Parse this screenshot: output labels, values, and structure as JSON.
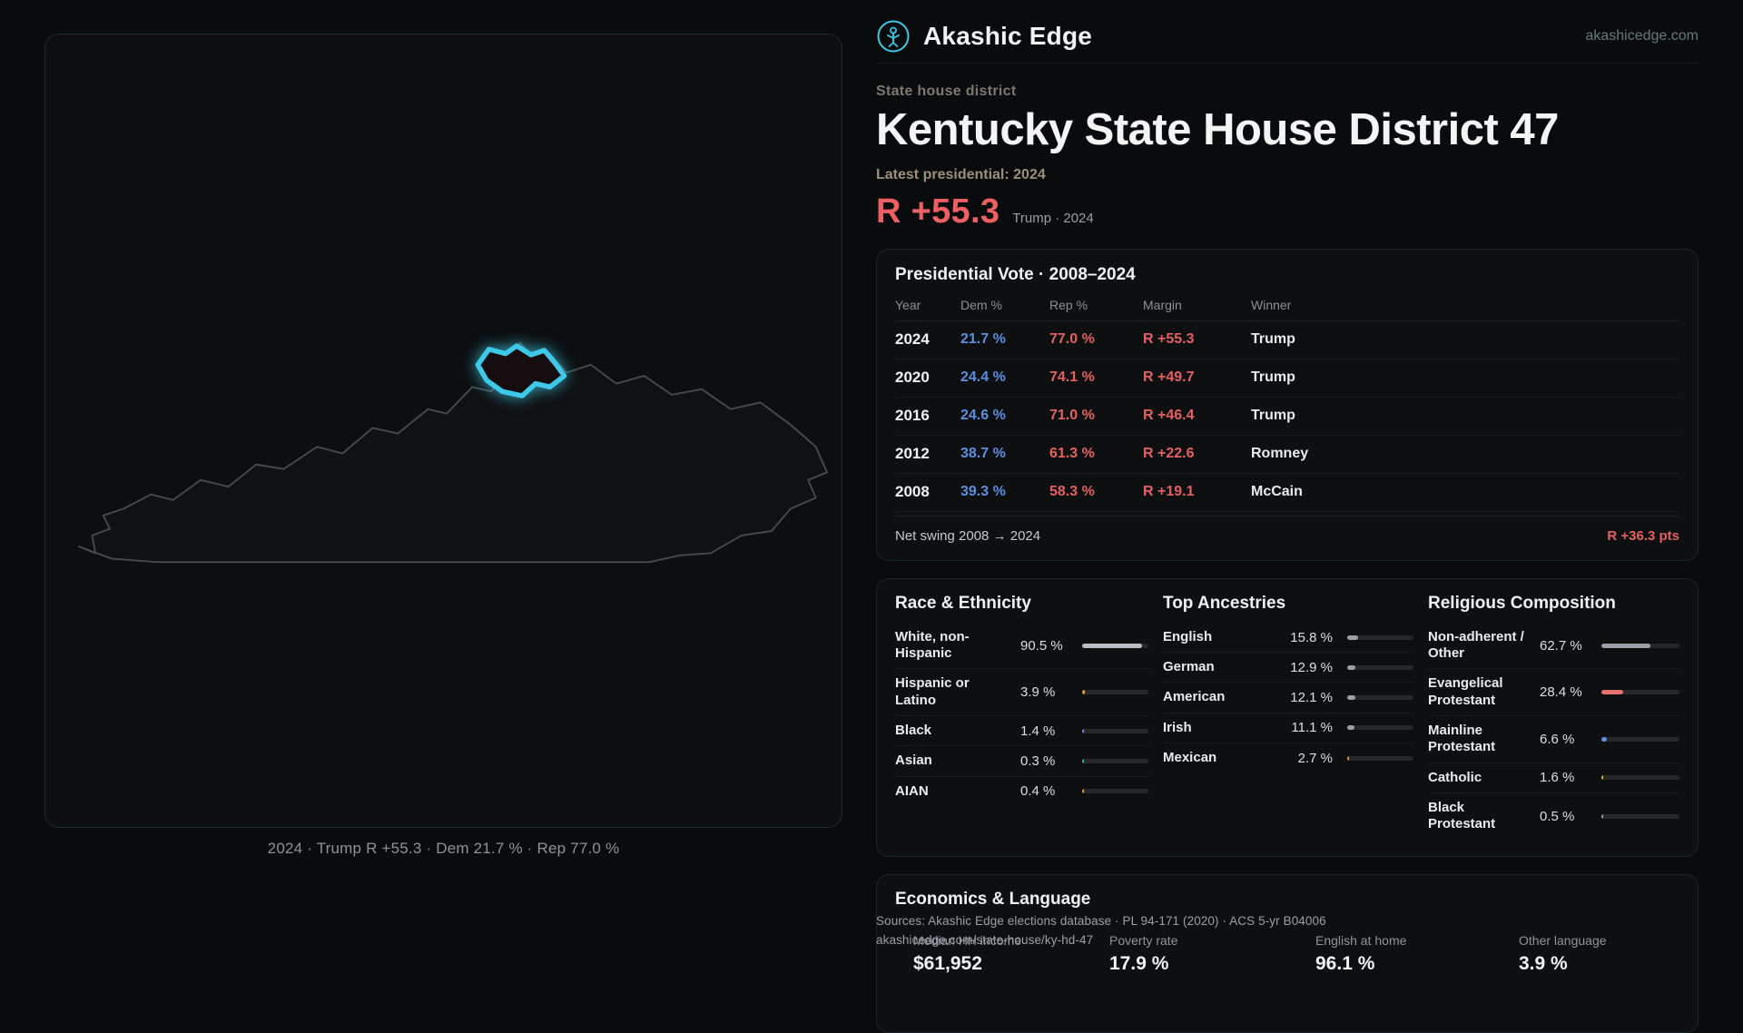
{
  "site": {
    "brand": "Akashic Edge",
    "domain": "akashicedge.com"
  },
  "district": {
    "type_label": "State house district",
    "title": "Kentucky State House District 47",
    "latest_label": "Latest presidential: 2024",
    "headline_margin": "R +55.3",
    "headline_context": "Trump · 2024"
  },
  "map": {
    "caption": "2024 · Trump R +55.3 · Dem 21.7 % · Rep 77.0 %"
  },
  "presidential_table": {
    "title": "Presidential Vote · 2008–2024",
    "columns": {
      "year": "Year",
      "dem": "Dem %",
      "rep": "Rep %",
      "margin": "Margin",
      "winner": "Winner"
    },
    "rows": [
      {
        "year": "2024",
        "dem": "21.7 %",
        "rep": "77.0 %",
        "margin": "R +55.3",
        "winner": "Trump"
      },
      {
        "year": "2020",
        "dem": "24.4 %",
        "rep": "74.1 %",
        "margin": "R +49.7",
        "winner": "Trump"
      },
      {
        "year": "2016",
        "dem": "24.6 %",
        "rep": "71.0 %",
        "margin": "R +46.4",
        "winner": "Trump"
      },
      {
        "year": "2012",
        "dem": "38.7 %",
        "rep": "61.3 %",
        "margin": "R +22.6",
        "winner": "Romney"
      },
      {
        "year": "2008",
        "dem": "39.3 %",
        "rep": "58.3 %",
        "margin": "R +19.1",
        "winner": "McCain"
      }
    ],
    "net_swing_label": "Net swing 2008 → 2024",
    "net_swing_value": "R +36.3 pts"
  },
  "race": {
    "title": "Race & Ethnicity",
    "rows": [
      {
        "label": "White, non-Hispanic",
        "value": "90.5 %",
        "pct": 90.5,
        "color": "#b9bfc7"
      },
      {
        "label": "Hispanic or Latino",
        "value": "3.9 %",
        "pct": 3.9,
        "color": "#e0963f"
      },
      {
        "label": "Black",
        "value": "1.4 %",
        "pct": 1.4,
        "color": "#6f86e8"
      },
      {
        "label": "Asian",
        "value": "0.3 %",
        "pct": 0.3,
        "color": "#46b08a"
      },
      {
        "label": "AIAN",
        "value": "0.4 %",
        "pct": 0.4,
        "color": "#e0963f"
      }
    ]
  },
  "ancestries": {
    "title": "Top Ancestries",
    "rows": [
      {
        "label": "English",
        "value": "15.8 %",
        "pct": 15.8,
        "color": "#9aa1a9"
      },
      {
        "label": "German",
        "value": "12.9 %",
        "pct": 12.9,
        "color": "#9aa1a9"
      },
      {
        "label": "American",
        "value": "12.1 %",
        "pct": 12.1,
        "color": "#9aa1a9"
      },
      {
        "label": "Irish",
        "value": "11.1 %",
        "pct": 11.1,
        "color": "#9aa1a9"
      },
      {
        "label": "Mexican",
        "value": "2.7 %",
        "pct": 2.7,
        "color": "#e0963f"
      }
    ]
  },
  "religion": {
    "title": "Religious Composition",
    "rows": [
      {
        "label": "Non-adherent / Other",
        "value": "62.7 %",
        "pct": 62.7,
        "color": "#9aa1a9"
      },
      {
        "label": "Evangelical Protestant",
        "value": "28.4 %",
        "pct": 28.4,
        "color": "#e4716d"
      },
      {
        "label": "Mainline Protestant",
        "value": "6.6 %",
        "pct": 6.6,
        "color": "#5e8fe0"
      },
      {
        "label": "Catholic",
        "value": "1.6 %",
        "pct": 1.6,
        "color": "#d9b23e"
      },
      {
        "label": "Black Protestant",
        "value": "0.5 %",
        "pct": 0.5,
        "color": "#9aa1a9"
      }
    ]
  },
  "economics": {
    "title": "Economics & Language",
    "stats": [
      {
        "label": "Median HH income",
        "value": "$61,952"
      },
      {
        "label": "Poverty rate",
        "value": "17.9 %"
      },
      {
        "label": "English at home",
        "value": "96.1 %"
      },
      {
        "label": "Other language",
        "value": "3.9 %"
      }
    ]
  },
  "footer": {
    "sources": "Sources: Akashic Edge elections database · PL 94-171 (2020) · ACS 5-yr B04006",
    "permalink": "akashicedge.com/state-house/ky-hd-47"
  }
}
